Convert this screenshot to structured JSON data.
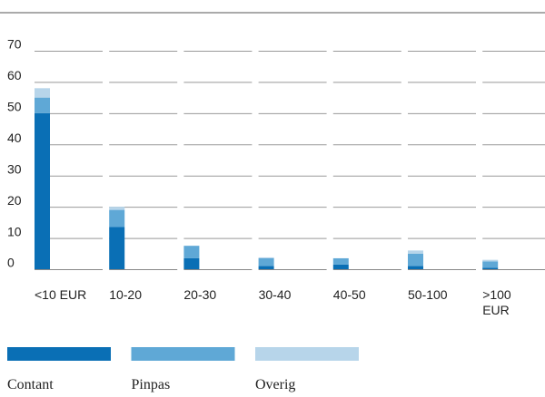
{
  "chart_data": {
    "type": "stacked_bar",
    "categories": [
      "<10 EUR",
      "10-20",
      "20-30",
      "30-40",
      "40-50",
      "50-100",
      ">100 EUR"
    ],
    "series": [
      {
        "name": "Contant",
        "color": "#0a6fb5",
        "values": [
          50,
          13.5,
          3.5,
          1,
          1.5,
          1,
          0.5
        ]
      },
      {
        "name": "Pinpas",
        "color": "#5fa8d6",
        "values": [
          5,
          5.5,
          4,
          2.5,
          2,
          4,
          2
        ]
      },
      {
        "name": "Overig",
        "color": "#b7d5ea",
        "values": [
          3,
          1,
          0,
          0.3,
          0,
          1,
          0.5
        ]
      }
    ],
    "ylim": [
      0,
      70
    ],
    "yticks": [
      0,
      10,
      20,
      30,
      40,
      50,
      60,
      70
    ],
    "grid": true
  }
}
